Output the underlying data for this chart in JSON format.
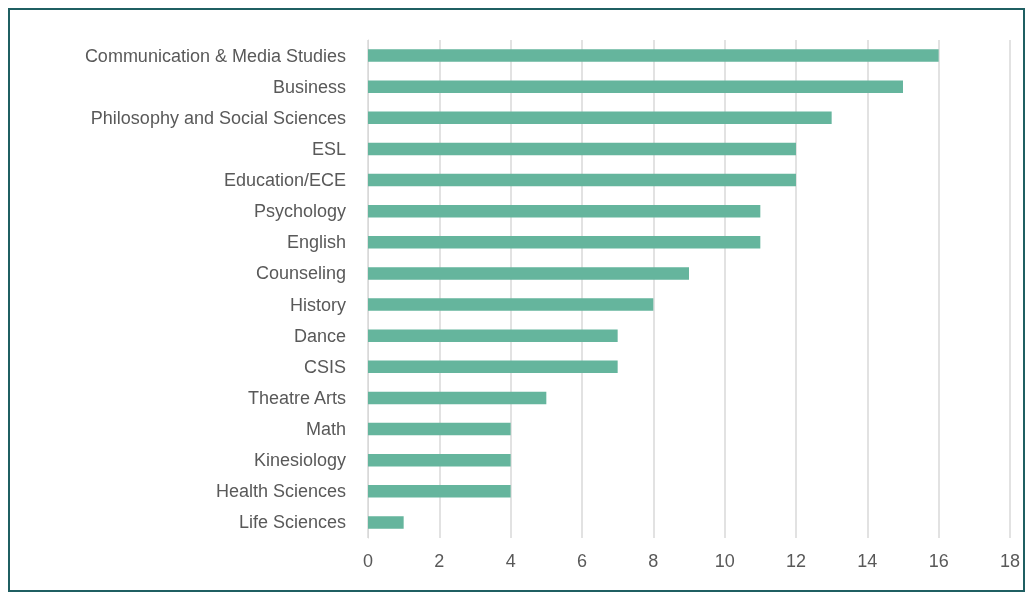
{
  "chart_data": {
    "type": "bar",
    "orientation": "horizontal",
    "categories": [
      "Communication & Media Studies",
      "Business",
      "Philosophy and Social Sciences",
      "ESL",
      "Education/ECE",
      "Psychology",
      "English",
      "Counseling",
      "History",
      "Dance",
      "CSIS",
      "Theatre Arts",
      "Math",
      "Kinesiology",
      "Health Sciences",
      "Life Sciences"
    ],
    "values": [
      16,
      15,
      13,
      12,
      12,
      11,
      11,
      9,
      8,
      7,
      7,
      5,
      4,
      4,
      4,
      1
    ],
    "color": "#65b59d",
    "xlim": [
      0,
      18
    ],
    "xticks": [
      0,
      2,
      4,
      6,
      8,
      10,
      12,
      14,
      16,
      18
    ],
    "grid": "x"
  }
}
